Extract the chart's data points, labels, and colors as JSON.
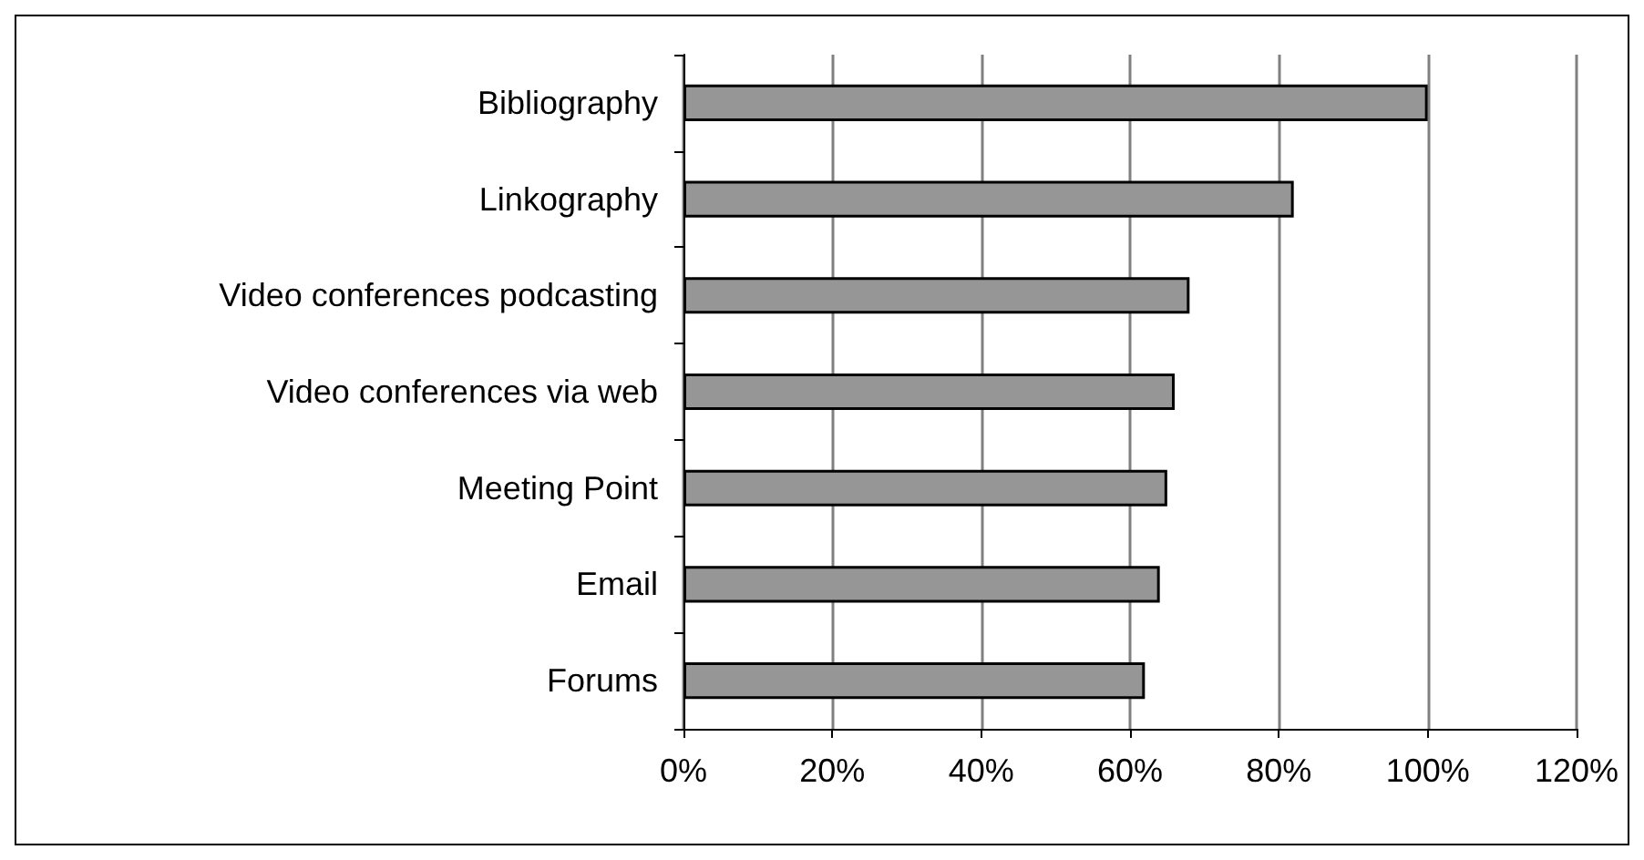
{
  "chart_data": {
    "type": "bar",
    "orientation": "horizontal",
    "categories": [
      "Bibliography",
      "Linkography",
      "Video conferences podcasting",
      "Video conferences via web",
      "Meeting Point",
      "Email",
      "Forums"
    ],
    "values": [
      100,
      82,
      68,
      66,
      65,
      64,
      62
    ],
    "color": "#969696",
    "xlim": [
      0,
      120
    ],
    "xticks": [
      {
        "value": 0,
        "label": "0%"
      },
      {
        "value": 20,
        "label": "20%"
      },
      {
        "value": 40,
        "label": "40%"
      },
      {
        "value": 60,
        "label": "60%"
      },
      {
        "value": 80,
        "label": "80%"
      },
      {
        "value": 100,
        "label": "100%"
      },
      {
        "value": 120,
        "label": "120%"
      }
    ],
    "grid": "x"
  }
}
